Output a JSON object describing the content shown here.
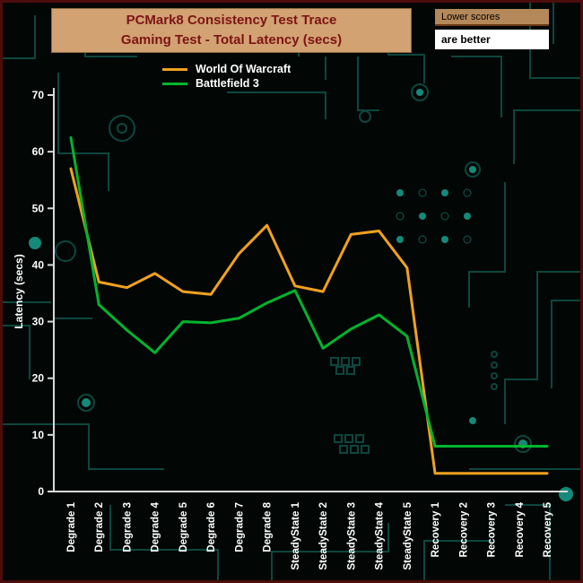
{
  "header": {
    "title_line1": "PCMark8 Consistency Test Trace",
    "title_line2": "Gaming Test -  Total Latency (secs)",
    "note_line1": "Lower scores",
    "note_line2": "are better",
    "title_bg": "#d2a273",
    "title_text_color": "#7d1414",
    "note_bg": "#b5885a"
  },
  "background": {
    "style": "circuit-board",
    "base_color": "#020705",
    "trace_color": "#0d463e",
    "dot_color": "#15897a",
    "border_color": "#4d0d0d"
  },
  "chart_data": {
    "type": "line",
    "title": "PCMark8 Consistency Test Trace — Gaming Test - Total Latency (secs)",
    "xlabel": "",
    "ylabel": "Latency (secs)",
    "ylim": [
      0,
      70
    ],
    "ytick_step": 10,
    "grid": false,
    "legend_position": "top-center",
    "axis_color": "#d9d9d9",
    "label_color": "#ffffff",
    "categories": [
      "Degrade 1",
      "Degrade 2",
      "Degrade 3",
      "Degrade 4",
      "Degrade 5",
      "Degrade 6",
      "Degrade 7",
      "Degrade 8",
      "SteadyState 1",
      "SteadyState 2",
      "SteadyState 3",
      "SteadyState 4",
      "SteadyState 5",
      "Recovery 1",
      "Recovery 2",
      "Recovery 3",
      "Recovery 4",
      "Recovery 5"
    ],
    "series": [
      {
        "name": "World Of Warcraft",
        "color": "#f0a11e",
        "values": [
          57,
          37,
          36,
          38.5,
          35.3,
          34.8,
          42,
          47,
          36.3,
          35.3,
          45.4,
          46,
          39.5,
          3.2,
          3.2,
          3.2,
          3.2,
          3.2
        ]
      },
      {
        "name": "Battlefield 3",
        "color": "#00b42e",
        "values": [
          62.5,
          33,
          28.5,
          24.5,
          30,
          29.8,
          30.6,
          33.3,
          35.5,
          25.3,
          28.7,
          31.2,
          27.4,
          8,
          8,
          8,
          8,
          8
        ]
      }
    ]
  }
}
